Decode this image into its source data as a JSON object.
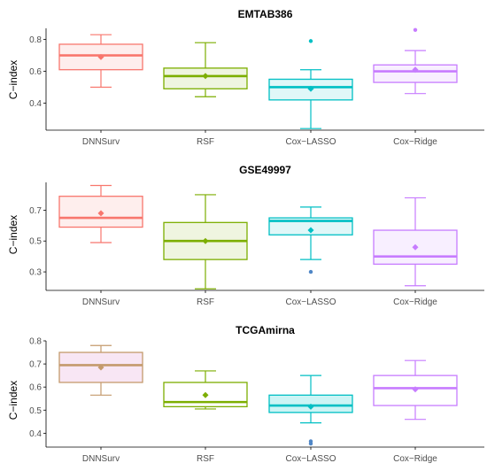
{
  "chart_data": [
    {
      "type": "box",
      "title": "EMTAB386",
      "xlabel": "",
      "ylabel": "C−index",
      "ylim": [
        0.23,
        0.87
      ],
      "yticks": [
        0.4,
        0.6,
        0.8
      ],
      "ytick_labels": [
        "0.4",
        "0.6",
        "0.8"
      ],
      "categories": [
        "DNNSurv",
        "RSF",
        "Cox−LASSO",
        "Cox−Ridge"
      ],
      "boxes": [
        {
          "whisker_low": 0.5,
          "q1": 0.61,
          "median": 0.7,
          "q3": 0.77,
          "whisker_high": 0.83,
          "mean": 0.69,
          "outliers": []
        },
        {
          "whisker_low": 0.44,
          "q1": 0.49,
          "median": 0.57,
          "q3": 0.62,
          "whisker_high": 0.78,
          "mean": 0.57,
          "outliers": []
        },
        {
          "whisker_low": 0.24,
          "q1": 0.42,
          "median": 0.5,
          "q3": 0.55,
          "whisker_high": 0.61,
          "mean": 0.49,
          "outliers": [
            0.79
          ]
        },
        {
          "whisker_low": 0.46,
          "q1": 0.53,
          "median": 0.6,
          "q3": 0.64,
          "whisker_high": 0.73,
          "mean": 0.61,
          "outliers": [
            0.86
          ]
        }
      ]
    },
    {
      "type": "box",
      "title": "GSE49997",
      "xlabel": "",
      "ylabel": "C−index",
      "ylim": [
        0.18,
        0.88
      ],
      "yticks": [
        0.3,
        0.5,
        0.7
      ],
      "ytick_labels": [
        "0.3",
        "0.5",
        "0.7"
      ],
      "categories": [
        "DNNSurv",
        "RSF",
        "Cox−LASSO",
        "Cox−Ridge"
      ],
      "boxes": [
        {
          "whisker_low": 0.49,
          "q1": 0.59,
          "median": 0.65,
          "q3": 0.79,
          "whisker_high": 0.86,
          "mean": 0.68,
          "outliers": []
        },
        {
          "whisker_low": 0.19,
          "q1": 0.38,
          "median": 0.5,
          "q3": 0.62,
          "whisker_high": 0.8,
          "mean": 0.5,
          "outliers": []
        },
        {
          "whisker_low": 0.38,
          "q1": 0.54,
          "median": 0.63,
          "q3": 0.65,
          "whisker_high": 0.72,
          "mean": 0.57,
          "outliers": [
            0.3
          ]
        },
        {
          "whisker_low": 0.21,
          "q1": 0.35,
          "median": 0.4,
          "q3": 0.57,
          "whisker_high": 0.78,
          "mean": 0.46,
          "outliers": []
        }
      ]
    },
    {
      "type": "box",
      "title": "TCGAmirna",
      "xlabel": "",
      "ylabel": "C−index",
      "ylim": [
        0.34,
        0.8
      ],
      "yticks": [
        0.4,
        0.5,
        0.6,
        0.7,
        0.8
      ],
      "ytick_labels": [
        "0.4",
        "0.5",
        "0.6",
        "0.7",
        "0.8"
      ],
      "categories": [
        "DNNSurv",
        "RSF",
        "Cox−LASSO",
        "Cox−Ridge"
      ],
      "boxes": [
        {
          "whisker_low": 0.565,
          "q1": 0.62,
          "median": 0.695,
          "q3": 0.75,
          "whisker_high": 0.78,
          "mean": 0.685,
          "outliers": []
        },
        {
          "whisker_low": 0.505,
          "q1": 0.515,
          "median": 0.535,
          "q3": 0.62,
          "whisker_high": 0.67,
          "mean": 0.565,
          "outliers": []
        },
        {
          "whisker_low": 0.445,
          "q1": 0.49,
          "median": 0.52,
          "q3": 0.565,
          "whisker_high": 0.65,
          "mean": 0.515,
          "outliers": [
            0.365,
            0.355
          ]
        },
        {
          "whisker_low": 0.46,
          "q1": 0.52,
          "median": 0.595,
          "q3": 0.65,
          "whisker_high": 0.715,
          "mean": 0.59,
          "outliers": []
        }
      ]
    }
  ],
  "colors": {
    "panel1": [
      "#F8766D",
      "#7CAE00",
      "#00BFC4",
      "#C77CFF"
    ],
    "panel2": [
      "#F8766D",
      "#7CAE00",
      "#00BFC4",
      "#C77CFF"
    ],
    "panel3": [
      "#C49A6C",
      "#7CAE00",
      "#00BFC4",
      "#C77CFF"
    ],
    "panel3_fill": [
      "#F8E6F4",
      "#FFFFFF",
      "#CCF4F5",
      "#FFFFFF"
    ],
    "outlier_color": "#4F86C6",
    "axis": "#000000",
    "tick_text": "#4d4d4d"
  }
}
